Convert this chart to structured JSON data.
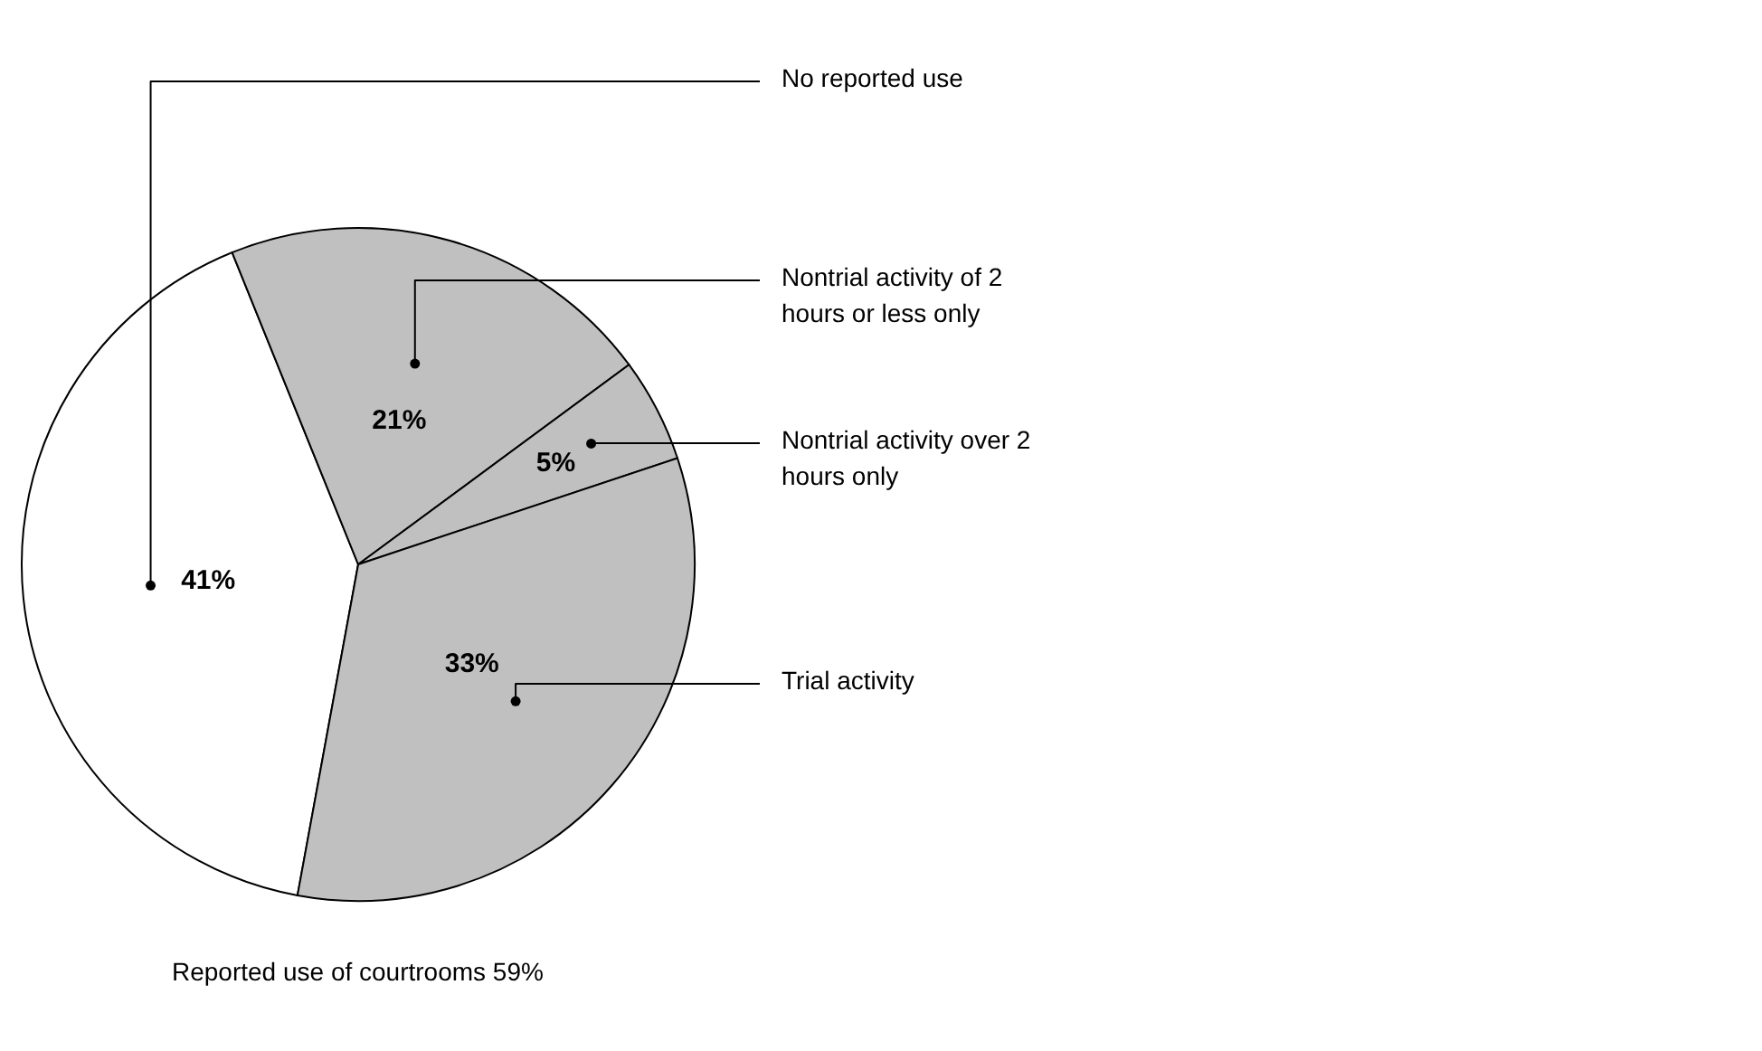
{
  "chart_data": {
    "type": "pie",
    "categories": [
      "No reported use",
      "Nontrial activity of 2 hours or less only",
      "Nontrial activity over 2 hours only",
      "Trial activity"
    ],
    "values": [
      41,
      21,
      5,
      33
    ],
    "colors": [
      "#ffffff",
      "#c0c0c0",
      "#c0c0c0",
      "#c0c0c0"
    ],
    "value_labels": [
      "41%",
      "21%",
      "5%",
      "33%"
    ],
    "annotations": [
      "Reported use of courtrooms 59%"
    ]
  }
}
